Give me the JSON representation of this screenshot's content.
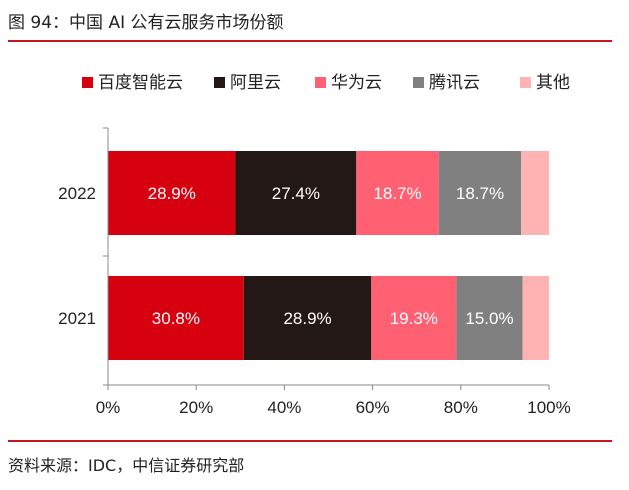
{
  "figure": {
    "title": "图 94：中国 AI 公有云服务市场份额",
    "source": "资料来源：IDC，中信证券研究部"
  },
  "chart_data": {
    "type": "bar",
    "orientation": "horizontal",
    "stacked": true,
    "percent": true,
    "categories": [
      "2022",
      "2021"
    ],
    "series": [
      {
        "name": "百度智能云",
        "color": "#d7000f",
        "values": [
          28.9,
          30.8
        ],
        "labels": [
          "28.9%",
          "30.8%"
        ]
      },
      {
        "name": "阿里云",
        "color": "#231815",
        "values": [
          27.4,
          28.9
        ],
        "labels": [
          "27.4%",
          "28.9%"
        ]
      },
      {
        "name": "华为云",
        "color": "#ff6173",
        "values": [
          18.7,
          19.3
        ],
        "labels": [
          "18.7%",
          "19.3%"
        ]
      },
      {
        "name": "腾讯云",
        "color": "#808080",
        "values": [
          18.7,
          15.0
        ],
        "labels": [
          "18.7%",
          "15.0%"
        ]
      },
      {
        "name": "其他",
        "color": "#ffb3b3",
        "values": [
          6.3,
          6.0
        ],
        "labels": [
          "",
          ""
        ]
      }
    ],
    "xlim": [
      0,
      100
    ],
    "xticks": [
      "0%",
      "20%",
      "40%",
      "60%",
      "80%",
      "100%"
    ],
    "legend_position": "top",
    "grid": false
  }
}
